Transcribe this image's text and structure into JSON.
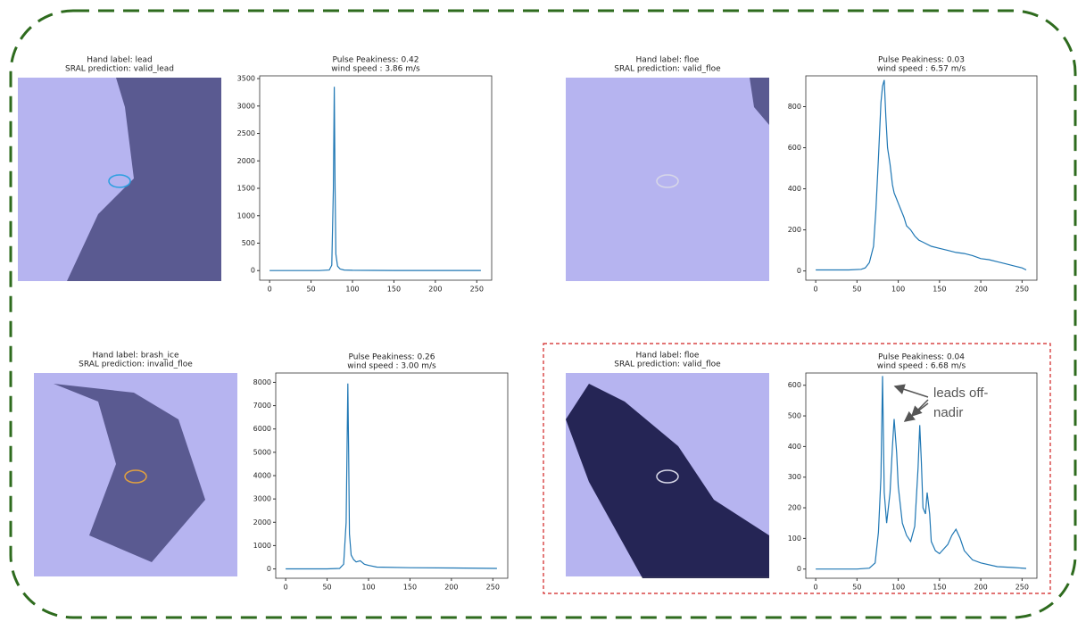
{
  "images": [
    {
      "title": [
        "Hand label: lead",
        "SRAL prediction: valid_lead"
      ],
      "marker_color": "#2a9fe0"
    },
    {
      "title": [
        "Hand label: floe",
        "SRAL prediction: valid_floe"
      ],
      "marker_color": "#d8d8e8"
    },
    {
      "title": [
        "Hand label: brash_ice",
        "SRAL prediction: invalid_floe"
      ],
      "marker_color": "#e0a040"
    },
    {
      "title": [
        "Hand label: floe",
        "SRAL prediction: valid_floe"
      ],
      "marker_color": "#d8d8e8"
    }
  ],
  "chart_data": [
    {
      "type": "line",
      "title": "Pulse Peakiness: 0.42",
      "subtitle": "wind speed : 3.86 m/s",
      "color": "#1f77b4",
      "x": [
        0,
        60,
        72,
        75,
        77,
        78,
        79,
        80,
        82,
        85,
        90,
        100,
        150,
        200,
        255
      ],
      "values": [
        0,
        0,
        10,
        100,
        1500,
        3350,
        1500,
        300,
        80,
        30,
        10,
        5,
        3,
        2,
        2
      ],
      "xlim": [
        -12,
        268
      ],
      "xticks": [
        0,
        50,
        100,
        150,
        200,
        250
      ],
      "ylim": [
        -175,
        3550
      ],
      "yticks": [
        0,
        500,
        1000,
        1500,
        2000,
        2500,
        3000,
        3500
      ]
    },
    {
      "type": "line",
      "title": "Pulse Peakiness: 0.03",
      "subtitle": "wind speed : 6.57 m/s",
      "color": "#1f77b4",
      "x": [
        0,
        20,
        40,
        55,
        60,
        65,
        70,
        73,
        76,
        79,
        81,
        83,
        85,
        87,
        90,
        93,
        95,
        98,
        100,
        103,
        107,
        110,
        115,
        120,
        125,
        130,
        140,
        150,
        160,
        170,
        180,
        190,
        200,
        210,
        220,
        230,
        240,
        250,
        255
      ],
      "values": [
        5,
        5,
        5,
        8,
        15,
        40,
        120,
        300,
        550,
        820,
        900,
        930,
        750,
        600,
        520,
        420,
        380,
        350,
        330,
        300,
        260,
        220,
        200,
        170,
        150,
        140,
        120,
        110,
        100,
        90,
        85,
        75,
        60,
        55,
        45,
        35,
        25,
        15,
        5
      ],
      "xlim": [
        -12,
        268
      ],
      "xticks": [
        0,
        50,
        100,
        150,
        200,
        250
      ],
      "ylim": [
        -45,
        950
      ],
      "yticks": [
        0,
        200,
        400,
        600,
        800
      ]
    },
    {
      "type": "line",
      "title": "Pulse Peakiness: 0.26",
      "subtitle": "wind speed : 3.00 m/s",
      "color": "#1f77b4",
      "x": [
        0,
        50,
        65,
        70,
        73,
        75,
        76,
        77,
        79,
        82,
        85,
        90,
        95,
        100,
        110,
        150,
        200,
        255
      ],
      "values": [
        0,
        0,
        20,
        200,
        2000,
        7950,
        5000,
        1500,
        600,
        400,
        300,
        350,
        200,
        150,
        80,
        50,
        40,
        20
      ],
      "xlim": [
        -12,
        268
      ],
      "xticks": [
        0,
        50,
        100,
        150,
        200,
        250
      ],
      "ylim": [
        -400,
        8400
      ],
      "yticks": [
        0,
        1000,
        2000,
        3000,
        4000,
        5000,
        6000,
        7000,
        8000
      ]
    },
    {
      "type": "line",
      "title": "Pulse Peakiness: 0.04",
      "subtitle": "wind speed : 6.68 m/s",
      "color": "#1f77b4",
      "x": [
        0,
        50,
        65,
        72,
        76,
        79,
        81,
        83,
        86,
        90,
        93,
        95,
        98,
        100,
        105,
        110,
        115,
        120,
        124,
        126,
        128,
        130,
        133,
        135,
        138,
        140,
        145,
        150,
        160,
        165,
        170,
        175,
        180,
        190,
        200,
        220,
        240,
        255
      ],
      "values": [
        0,
        0,
        3,
        20,
        120,
        300,
        630,
        250,
        150,
        250,
        400,
        490,
        380,
        270,
        150,
        110,
        90,
        140,
        330,
        470,
        350,
        200,
        180,
        250,
        180,
        90,
        60,
        50,
        80,
        110,
        130,
        100,
        60,
        30,
        20,
        8,
        5,
        2
      ],
      "xlim": [
        -12,
        268
      ],
      "xticks": [
        0,
        50,
        100,
        150,
        200,
        250
      ],
      "ylim": [
        -30,
        640
      ],
      "yticks": [
        0,
        100,
        200,
        300,
        400,
        500,
        600
      ],
      "annotation": [
        "leads off-",
        "nadir"
      ]
    }
  ]
}
